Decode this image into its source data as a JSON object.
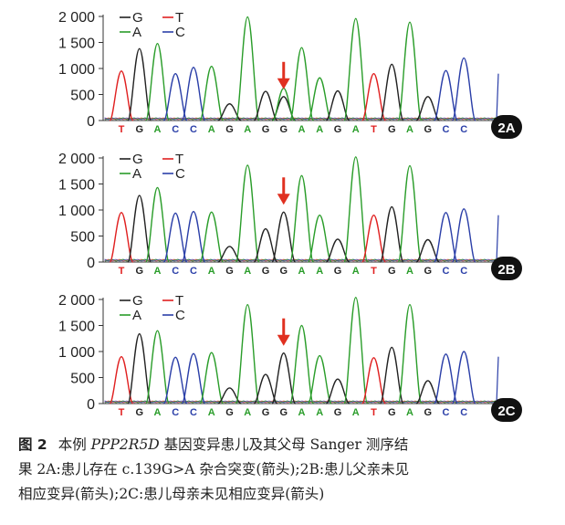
{
  "chart_data": [
    {
      "type": "line",
      "panel_label": "2A",
      "yticks": [
        "2 000",
        "1 500",
        "1 000",
        "500",
        "0"
      ],
      "ylim": [
        0,
        2000
      ],
      "legend": [
        {
          "name": "G",
          "color": "#222222"
        },
        {
          "name": "T",
          "color": "#e02020"
        },
        {
          "name": "A",
          "color": "#2a9d2a"
        },
        {
          "name": "C",
          "color": "#2b3fa8"
        }
      ],
      "bases": [
        "T",
        "G",
        "A",
        "C",
        "C",
        "A",
        "G",
        "A",
        "G",
        "G",
        "A",
        "A",
        "G",
        "A",
        "T",
        "G",
        "A",
        "G",
        "C",
        "C"
      ],
      "peaks": [
        950,
        1380,
        1480,
        900,
        1020,
        1040,
        320,
        1990,
        560,
        460,
        1400,
        820,
        570,
        1960,
        900,
        1080,
        1890,
        460,
        960,
        1200
      ],
      "arrow_index": 9
    },
    {
      "type": "line",
      "panel_label": "2B",
      "yticks": [
        "2 000",
        "1 500",
        "1 000",
        "500",
        "0"
      ],
      "ylim": [
        0,
        2000
      ],
      "legend": [
        {
          "name": "G",
          "color": "#222222"
        },
        {
          "name": "T",
          "color": "#e02020"
        },
        {
          "name": "A",
          "color": "#2a9d2a"
        },
        {
          "name": "C",
          "color": "#2b3fa8"
        }
      ],
      "bases": [
        "T",
        "G",
        "A",
        "C",
        "C",
        "A",
        "G",
        "A",
        "G",
        "G",
        "A",
        "A",
        "G",
        "A",
        "T",
        "G",
        "A",
        "G",
        "C",
        "C"
      ],
      "peaks": [
        950,
        1280,
        1430,
        940,
        970,
        960,
        300,
        1860,
        640,
        960,
        1660,
        900,
        440,
        2020,
        900,
        1060,
        1850,
        430,
        950,
        1020
      ],
      "arrow_index": 9
    },
    {
      "type": "line",
      "panel_label": "2C",
      "yticks": [
        "2 000",
        "1 500",
        "1 000",
        "500",
        "0"
      ],
      "ylim": [
        0,
        2000
      ],
      "legend": [
        {
          "name": "G",
          "color": "#222222"
        },
        {
          "name": "T",
          "color": "#e02020"
        },
        {
          "name": "A",
          "color": "#2a9d2a"
        },
        {
          "name": "C",
          "color": "#2b3fa8"
        }
      ],
      "bases": [
        "T",
        "G",
        "A",
        "C",
        "C",
        "A",
        "G",
        "A",
        "G",
        "G",
        "A",
        "A",
        "G",
        "A",
        "T",
        "G",
        "A",
        "G",
        "C",
        "C"
      ],
      "peaks": [
        900,
        1340,
        1400,
        890,
        960,
        980,
        300,
        1900,
        560,
        970,
        1500,
        920,
        470,
        2040,
        880,
        1080,
        1900,
        440,
        950,
        1000
      ],
      "arrow_index": 9
    }
  ],
  "base_colors": {
    "G": "#222222",
    "T": "#e02020",
    "A": "#2a9d2a",
    "C": "#2b3fa8"
  },
  "arrow_color": "#e03020",
  "caption": {
    "fig_label": "图 2",
    "part1": "本例 ",
    "gene": "PPP2R5D",
    "part2": " 基因变异患儿及其父母 Sanger 测序结",
    "line2": "果  2A:患儿存在 c.139G>A 杂合突变(箭头);2B:患儿父亲未见",
    "line3": "相应变异(箭头);2C:患儿母亲未见相应变异(箭头)"
  }
}
